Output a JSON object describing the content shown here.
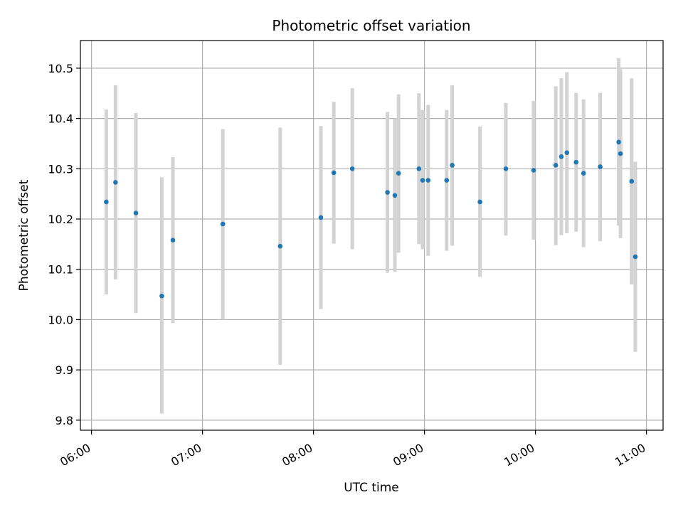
{
  "chart_data": {
    "type": "scatter",
    "title": "Photometric offset variation",
    "xlabel": "UTC time",
    "ylabel": "Photometric offset",
    "x_unit": "UTC time (HH:MM)",
    "xlim": [
      "05:54",
      "11:09"
    ],
    "ylim": [
      9.78,
      10.555
    ],
    "x_ticks": [
      "06:00",
      "07:00",
      "08:00",
      "09:00",
      "10:00",
      "11:00"
    ],
    "y_ticks": [
      9.8,
      9.9,
      10.0,
      10.1,
      10.2,
      10.3,
      10.4,
      10.5
    ],
    "y_tick_labels": [
      "9.8",
      "9.9",
      "10.0",
      "10.1",
      "10.2",
      "10.3",
      "10.4",
      "10.5"
    ],
    "grid": true,
    "legend": "none",
    "colors": {
      "points": "#1f77b4",
      "error_bars": "#d3d3d3",
      "grid": "#b0b0b0"
    },
    "series": [
      {
        "points": [
          {
            "x": "06:08",
            "y": 10.234,
            "ylo": 10.05,
            "yhi": 10.418
          },
          {
            "x": "06:13",
            "y": 10.273,
            "ylo": 10.08,
            "yhi": 10.466
          },
          {
            "x": "06:24",
            "y": 10.212,
            "ylo": 10.013,
            "yhi": 10.411
          },
          {
            "x": "06:38",
            "y": 10.047,
            "ylo": 9.813,
            "yhi": 10.283
          },
          {
            "x": "06:44",
            "y": 10.158,
            "ylo": 9.993,
            "yhi": 10.323
          },
          {
            "x": "07:11",
            "y": 10.19,
            "ylo": 10.0,
            "yhi": 10.379
          },
          {
            "x": "07:42",
            "y": 10.146,
            "ylo": 9.91,
            "yhi": 10.382
          },
          {
            "x": "08:04",
            "y": 10.203,
            "ylo": 10.021,
            "yhi": 10.385
          },
          {
            "x": "08:11",
            "y": 10.292,
            "ylo": 10.151,
            "yhi": 10.433
          },
          {
            "x": "08:21",
            "y": 10.3,
            "ylo": 10.14,
            "yhi": 10.46
          },
          {
            "x": "08:40",
            "y": 10.253,
            "ylo": 10.093,
            "yhi": 10.413
          },
          {
            "x": "08:44",
            "y": 10.247,
            "ylo": 10.095,
            "yhi": 10.4
          },
          {
            "x": "08:46",
            "y": 10.291,
            "ylo": 10.133,
            "yhi": 10.448
          },
          {
            "x": "08:57",
            "y": 10.3,
            "ylo": 10.15,
            "yhi": 10.45
          },
          {
            "x": "08:59",
            "y": 10.277,
            "ylo": 10.14,
            "yhi": 10.417
          },
          {
            "x": "09:02",
            "y": 10.277,
            "ylo": 10.127,
            "yhi": 10.427
          },
          {
            "x": "09:12",
            "y": 10.277,
            "ylo": 10.137,
            "yhi": 10.417
          },
          {
            "x": "09:15",
            "y": 10.307,
            "ylo": 10.147,
            "yhi": 10.466
          },
          {
            "x": "09:30",
            "y": 10.234,
            "ylo": 10.085,
            "yhi": 10.384
          },
          {
            "x": "09:44",
            "y": 10.3,
            "ylo": 10.167,
            "yhi": 10.431
          },
          {
            "x": "09:59",
            "y": 10.297,
            "ylo": 10.159,
            "yhi": 10.435
          },
          {
            "x": "10:11",
            "y": 10.307,
            "ylo": 10.148,
            "yhi": 10.464
          },
          {
            "x": "10:14",
            "y": 10.324,
            "ylo": 10.168,
            "yhi": 10.48
          },
          {
            "x": "10:17",
            "y": 10.332,
            "ylo": 10.172,
            "yhi": 10.492
          },
          {
            "x": "10:22",
            "y": 10.313,
            "ylo": 10.175,
            "yhi": 10.451
          },
          {
            "x": "10:26",
            "y": 10.291,
            "ylo": 10.144,
            "yhi": 10.438
          },
          {
            "x": "10:35",
            "y": 10.304,
            "ylo": 10.156,
            "yhi": 10.451
          },
          {
            "x": "10:45",
            "y": 10.353,
            "ylo": 10.187,
            "yhi": 10.52
          },
          {
            "x": "10:46",
            "y": 10.33,
            "ylo": 10.162,
            "yhi": 10.498
          },
          {
            "x": "10:52",
            "y": 10.275,
            "ylo": 10.07,
            "yhi": 10.48
          },
          {
            "x": "10:54",
            "y": 10.125,
            "ylo": 9.936,
            "yhi": 10.314
          }
        ]
      }
    ]
  }
}
